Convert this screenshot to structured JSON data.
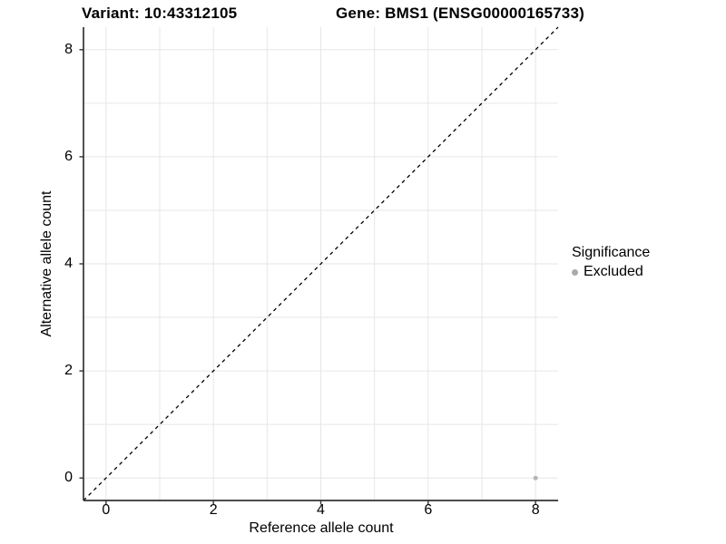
{
  "chart_data": {
    "type": "scatter",
    "titles": {
      "variant": "Variant: 10:43312105",
      "gene": "Gene: BMS1 (ENSG00000165733)"
    },
    "xlabel": "Reference allele count",
    "ylabel": "Alternative allele count",
    "x_ticks": [
      0,
      2,
      4,
      6,
      8
    ],
    "y_ticks": [
      0,
      2,
      4,
      6,
      8
    ],
    "xlim": [
      -0.42,
      8.42
    ],
    "ylim": [
      -0.42,
      8.42
    ],
    "grid": true,
    "grid_step": 1,
    "identity_line": {
      "style": "dashed",
      "from": [
        -0.42,
        -0.42
      ],
      "to": [
        8.42,
        8.42
      ]
    },
    "series": [
      {
        "name": "Excluded",
        "color": "#b4b4b4",
        "point_radius": 2.5,
        "points": [
          [
            8,
            0
          ]
        ]
      }
    ],
    "legend": {
      "title": "Significance",
      "position": "right",
      "items": [
        {
          "label": "Excluded",
          "color": "#aaaaaa"
        }
      ]
    },
    "colors": {
      "grid": "#e6e6e6",
      "axis": "#333333",
      "tick": "#333333",
      "dashed_line": "#000000",
      "text": "#000000",
      "background": "#ffffff"
    }
  }
}
